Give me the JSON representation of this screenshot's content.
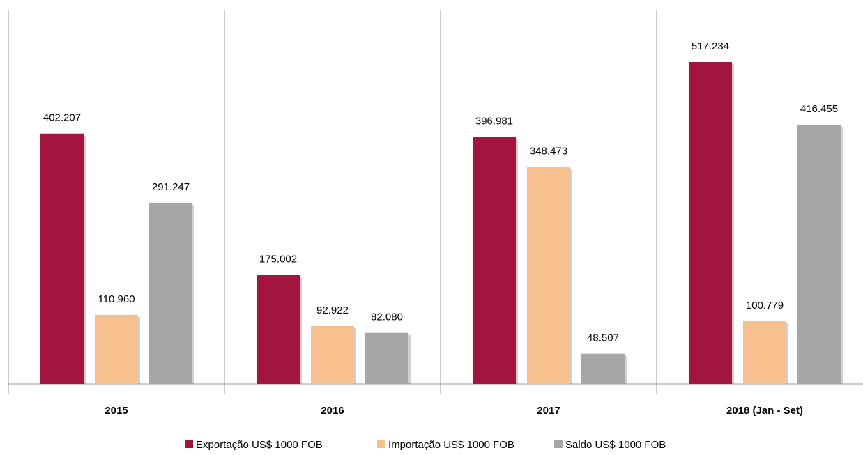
{
  "chart_data": {
    "type": "bar",
    "categories": [
      "2015",
      "2016",
      "2017",
      "2018 (Jan - Set)"
    ],
    "series": [
      {
        "name": "Exportação US$ 1000 FOB",
        "color": "#a3143e",
        "values": [
          402207,
          175002,
          396981,
          517234
        ],
        "value_labels": [
          "402.207",
          "175.002",
          "396.981",
          "517.234"
        ]
      },
      {
        "name": "Importação US$ 1000 FOB",
        "color": "#f9c08f",
        "values": [
          110960,
          92922,
          348473,
          100779
        ],
        "value_labels": [
          "110.960",
          "92.922",
          "348.473",
          "100.779"
        ]
      },
      {
        "name": "Saldo US$ 1000 FOB",
        "color": "#a6a6a6",
        "values": [
          291247,
          82080,
          48507,
          416455
        ],
        "value_labels": [
          "291.247",
          "82.080",
          "48.507",
          "416.455"
        ]
      }
    ],
    "legend": "bottom"
  }
}
